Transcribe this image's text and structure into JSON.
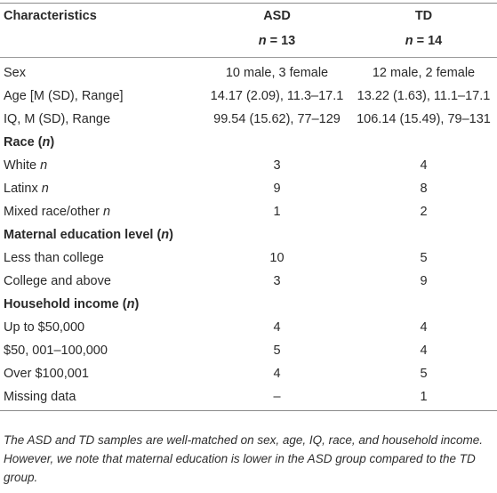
{
  "header": {
    "col1": "Characteristics",
    "col2": "ASD",
    "col3": "TD",
    "col2_n_label": "n",
    "col2_n_value": "= 13",
    "col3_n_label": "n",
    "col3_n_value": "= 14"
  },
  "rows_basic": [
    {
      "label": "Sex",
      "asd": "10 male, 3 female",
      "td": "12 male, 2 female"
    },
    {
      "label": "Age [M (SD), Range]",
      "asd": "14.17 (2.09), 11.3–17.1",
      "td": "13.22 (1.63), 11.1–17.1"
    },
    {
      "label": "IQ, M (SD), Range",
      "asd": "99.54 (15.62), 77–129",
      "td": "106.14 (15.49), 79–131"
    }
  ],
  "race": {
    "title": "Race (",
    "title_n": "n",
    "title_close": ")",
    "rows": [
      {
        "label": "White ",
        "label_n": "n",
        "asd": "3",
        "td": "4"
      },
      {
        "label": "Latinx ",
        "label_n": "n",
        "asd": "9",
        "td": "8"
      },
      {
        "label": "Mixed race/other ",
        "label_n": "n",
        "asd": "1",
        "td": "2"
      }
    ]
  },
  "maternal": {
    "title": "Maternal education level (",
    "title_n": "n",
    "title_close": ")",
    "rows": [
      {
        "label": "Less than college",
        "asd": "10",
        "td": "5"
      },
      {
        "label": "College and above",
        "asd": "3",
        "td": "9"
      }
    ]
  },
  "income": {
    "title": "Household income (",
    "title_n": "n",
    "title_close": ")",
    "rows": [
      {
        "label": "Up to $50,000",
        "asd": "4",
        "td": "4"
      },
      {
        "label": "$50, 001–100,000",
        "asd": "5",
        "td": "4"
      },
      {
        "label": "Over $100,001",
        "asd": "4",
        "td": "5"
      },
      {
        "label": "Missing data",
        "asd": "–",
        "td": "1"
      }
    ]
  },
  "footnote": "The ASD and TD samples are well-matched on sex, age, IQ, race, and household income. However, we note that maternal education is lower in the ASD group compared to the TD group."
}
